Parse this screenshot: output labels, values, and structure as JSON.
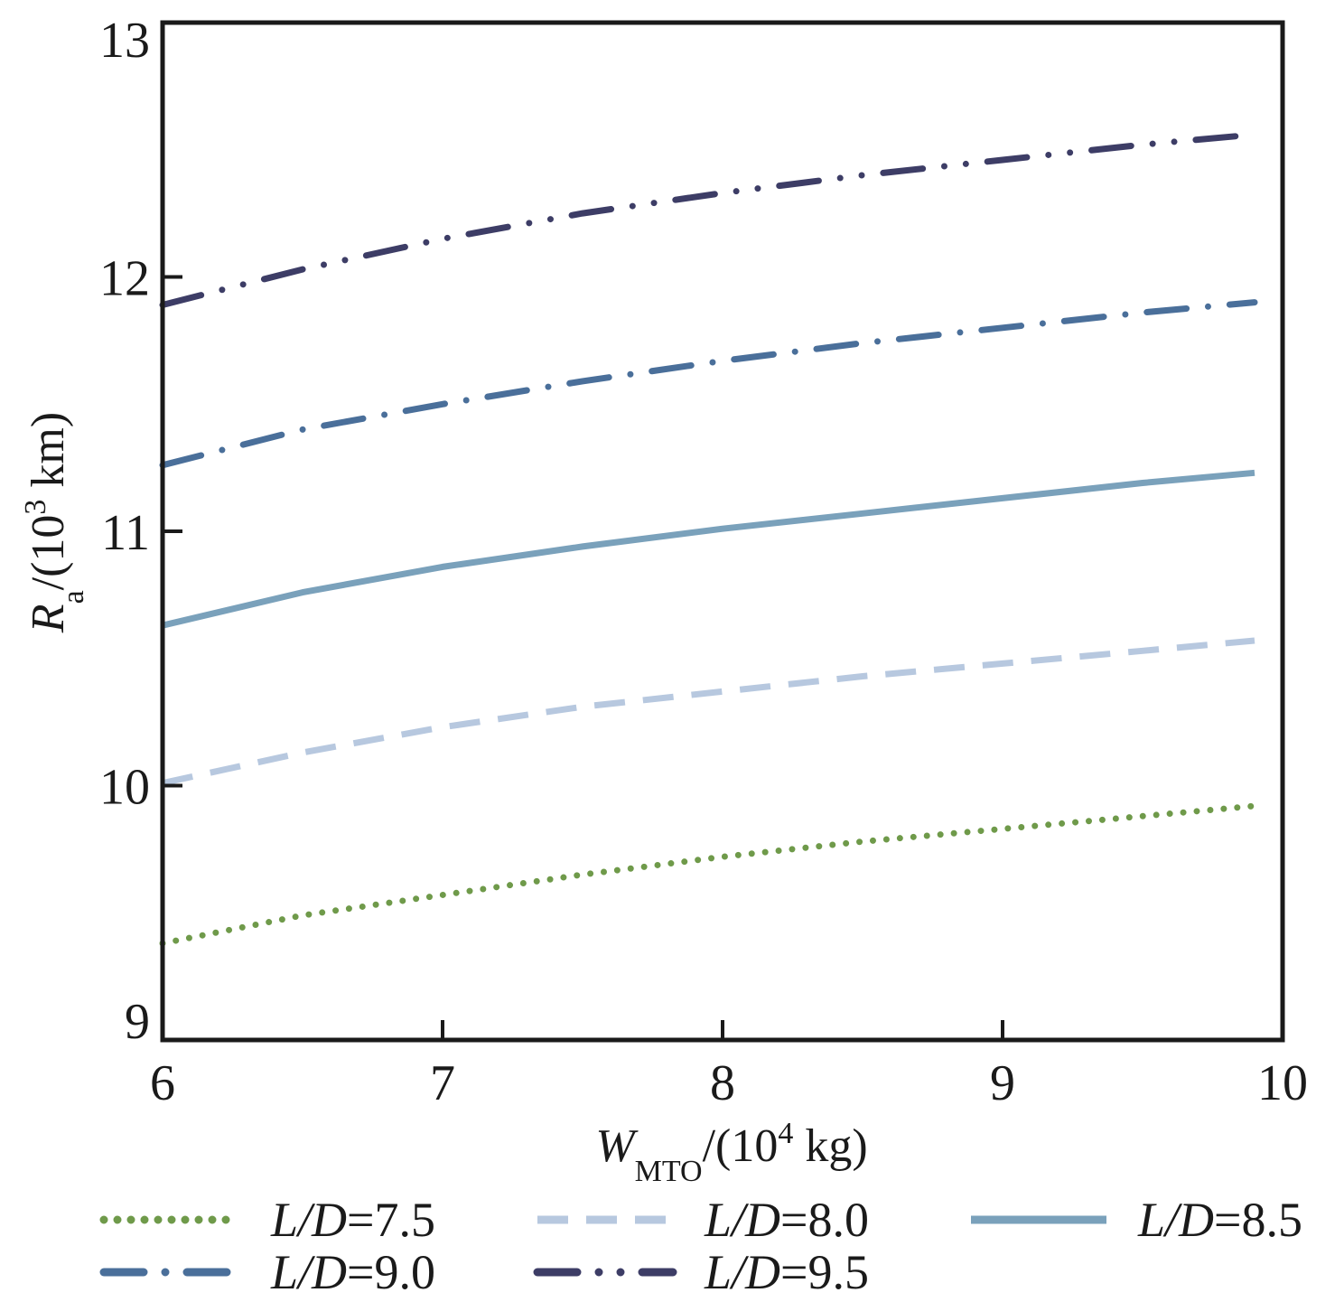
{
  "chart_data": {
    "type": "line",
    "title": "",
    "xlabel": "W_MTO/(10^4 kg)",
    "ylabel": "R_a/(10^3 km)",
    "xlim": [
      6,
      10
    ],
    "ylim": [
      9,
      13
    ],
    "xticks": [
      6,
      7,
      8,
      9,
      10
    ],
    "yticks": [
      9,
      10,
      11,
      12,
      13
    ],
    "grid": false,
    "legend_position": "bottom",
    "x": [
      6.0,
      6.5,
      7.0,
      7.5,
      8.0,
      8.5,
      9.0,
      9.5,
      9.9
    ],
    "series": [
      {
        "name": "L/D=7.5",
        "label_main": "L/D",
        "label_value": "=7.5",
        "color": "#6f9a4a",
        "dash": "dotted",
        "values": [
          9.38,
          9.49,
          9.57,
          9.65,
          9.72,
          9.78,
          9.83,
          9.88,
          9.92
        ]
      },
      {
        "name": "L/D=8.0",
        "label_main": "L/D",
        "label_value": "=8.0",
        "color": "#b7c8df",
        "dash": "dashed",
        "values": [
          10.01,
          10.13,
          10.23,
          10.31,
          10.37,
          10.43,
          10.48,
          10.53,
          10.57
        ]
      },
      {
        "name": "L/D=8.5",
        "label_main": "L/D",
        "label_value": "=8.5",
        "color": "#7aa1bb",
        "dash": "solid",
        "values": [
          10.63,
          10.76,
          10.86,
          10.94,
          11.01,
          11.07,
          11.13,
          11.19,
          11.23
        ]
      },
      {
        "name": "L/D=9.0",
        "label_main": "L/D",
        "label_value": "=9.0",
        "color": "#4a6f9a",
        "dash": "dashdot",
        "values": [
          11.26,
          11.4,
          11.5,
          11.59,
          11.67,
          11.74,
          11.8,
          11.86,
          11.9
        ]
      },
      {
        "name": "L/D=9.5",
        "label_main": "L/D",
        "label_value": "=9.5",
        "color": "#3d3d66",
        "dash": "dashdotdot",
        "values": [
          11.89,
          12.03,
          12.15,
          12.25,
          12.33,
          12.4,
          12.46,
          12.52,
          12.56
        ]
      }
    ],
    "axis_text": {
      "x_main": "W",
      "x_sub": "MTO",
      "x_rest_open": "/(10",
      "x_sup": "4",
      "x_rest_close": " kg)",
      "y_main": "R",
      "y_sub": "a",
      "y_rest_open": "/(10",
      "y_sup": "3",
      "y_rest_close": " km)"
    }
  }
}
